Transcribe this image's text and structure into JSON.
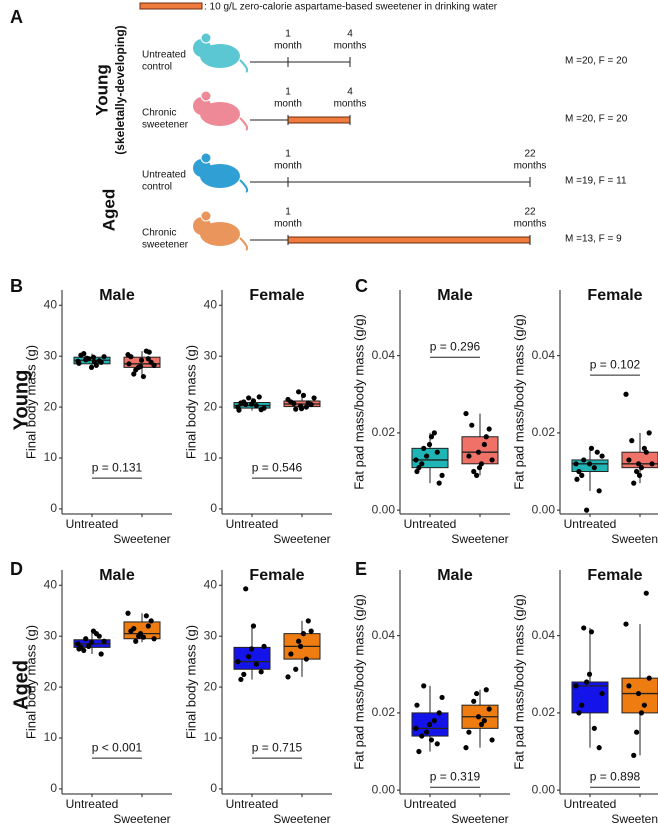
{
  "figure": {
    "panels": [
      "A",
      "B",
      "C",
      "D",
      "E"
    ],
    "rows": [
      "Young",
      "Aged"
    ]
  },
  "schematic": {
    "legend": ": 10 g/L zero-calorie aspartame-based sweetener in drinking water",
    "groups": [
      {
        "name": "Young",
        "subtitle": "(skeletally-developing)"
      },
      {
        "name": "Aged"
      }
    ],
    "rows": [
      {
        "label": [
          "Untreated",
          "control"
        ],
        "start": [
          "1",
          "month"
        ],
        "end": [
          "4",
          "months"
        ],
        "counts": "M =20, F = 20"
      },
      {
        "label": [
          "Chronic",
          "sweetener"
        ],
        "start": [
          "1",
          "month"
        ],
        "end": [
          "4",
          "months"
        ],
        "counts": "M =20, F = 20"
      },
      {
        "label": [
          "Untreated",
          "control"
        ],
        "start": [
          "1",
          "month"
        ],
        "end": [
          "22",
          "months"
        ],
        "counts": "M =19, F = 11"
      },
      {
        "label": [
          "Chronic",
          "sweetener"
        ],
        "start": [
          "1",
          "month"
        ],
        "end": [
          "22",
          "months"
        ],
        "counts": "M =13, F = 9"
      }
    ]
  },
  "chart_data": [
    {
      "type": "box",
      "title": "Male",
      "ylabel": "Final body mass (g)",
      "categories": [
        "Untreated",
        "Sweetener"
      ],
      "colors": [
        "#1fb5b5",
        "#f07167"
      ],
      "ylim": [
        -1,
        43
      ],
      "yticks": [
        0,
        10,
        20,
        30,
        40
      ],
      "annotation": "p = 0.131",
      "boxes": [
        {
          "whislo": 27.8,
          "q1": 28.5,
          "med": 29.2,
          "q3": 29.8,
          "whishi": 30.5
        },
        {
          "whislo": 26.0,
          "q1": 27.8,
          "med": 28.5,
          "q3": 29.8,
          "whishi": 31.0
        }
      ],
      "points": [
        [
          29.0,
          29.3,
          29.8,
          28.8,
          30.2,
          29.5,
          28.2,
          29.9,
          30.5,
          27.8,
          29.1,
          28.6,
          29.6,
          28.9
        ],
        [
          28.0,
          29.5,
          30.3,
          27.3,
          26.0,
          28.8,
          29.9,
          27.8,
          31.0,
          28.2,
          26.5,
          29.2,
          30.8,
          28.5
        ]
      ]
    },
    {
      "type": "box",
      "title": "Female",
      "ylabel": "Final body mass (g)",
      "categories": [
        "Untreated",
        "Sweetener"
      ],
      "colors": [
        "#1fb5b5",
        "#f07167"
      ],
      "ylim": [
        -1,
        43
      ],
      "yticks": [
        0,
        10,
        20,
        30,
        40
      ],
      "annotation": "p = 0.546",
      "boxes": [
        {
          "whislo": 19.3,
          "q1": 19.8,
          "med": 20.3,
          "q3": 20.9,
          "whishi": 21.8
        },
        {
          "whislo": 19.5,
          "q1": 20.1,
          "med": 20.6,
          "q3": 21.2,
          "whishi": 22.3
        }
      ],
      "points": [
        [
          20.0,
          20.5,
          21.2,
          19.5,
          20.8,
          21.8,
          20.3,
          19.8,
          21.0,
          20.6,
          22.0,
          19.4
        ],
        [
          20.2,
          20.8,
          21.5,
          19.6,
          22.3,
          20.5,
          21.0,
          23.0,
          20.0,
          21.8,
          20.7,
          19.7
        ]
      ]
    },
    {
      "type": "box",
      "title": "Male",
      "ylabel": "Fat pad mass/body mass (g/g)",
      "categories": [
        "Untreated",
        "Sweetener"
      ],
      "colors": [
        "#1fb5b5",
        "#f07167"
      ],
      "ylim": [
        -0.001,
        0.057
      ],
      "yticks": [
        {
          "value": 0,
          "label": "0.00"
        },
        {
          "value": 0.02,
          "label": "0.02"
        },
        {
          "value": 0.04,
          "label": "0.04"
        }
      ],
      "annotation": "p = 0.296",
      "boxes": [
        {
          "whislo": 0.007,
          "q1": 0.011,
          "med": 0.013,
          "q3": 0.016,
          "whishi": 0.02
        },
        {
          "whislo": 0.009,
          "q1": 0.012,
          "med": 0.015,
          "q3": 0.019,
          "whishi": 0.025
        }
      ],
      "points": [
        [
          0.013,
          0.016,
          0.019,
          0.007,
          0.011,
          0.014,
          0.02,
          0.009,
          0.012,
          0.017,
          0.015,
          0.01
        ],
        [
          0.015,
          0.019,
          0.025,
          0.01,
          0.012,
          0.021,
          0.014,
          0.009,
          0.017,
          0.013,
          0.022,
          0.011
        ]
      ]
    },
    {
      "type": "box",
      "title": "Female",
      "ylabel": "Fat pad mass/body mass (g/g)",
      "categories": [
        "Untreated",
        "Sweetener"
      ],
      "colors": [
        "#1fb5b5",
        "#f07167"
      ],
      "ylim": [
        -0.001,
        0.057
      ],
      "yticks": [
        {
          "value": 0,
          "label": "0.00"
        },
        {
          "value": 0.02,
          "label": "0.02"
        },
        {
          "value": 0.04,
          "label": "0.04"
        }
      ],
      "annotation": "p = 0.102",
      "boxes": [
        {
          "whislo": 0.005,
          "q1": 0.01,
          "med": 0.012,
          "q3": 0.013,
          "whishi": 0.016
        },
        {
          "whislo": 0.007,
          "q1": 0.011,
          "med": 0.012,
          "q3": 0.015,
          "whishi": 0.02
        }
      ],
      "points": [
        [
          0.012,
          0.013,
          0.016,
          0.005,
          0.01,
          0.0,
          0.011,
          0.014,
          0.009,
          0.012,
          0.015,
          0.008
        ],
        [
          0.012,
          0.015,
          0.03,
          0.007,
          0.011,
          0.02,
          0.013,
          0.01,
          0.016,
          0.012,
          0.018,
          0.009
        ]
      ]
    },
    {
      "type": "box",
      "title": "Male",
      "ylabel": "Final body mass (g)",
      "categories": [
        "Untreated",
        "Sweetener"
      ],
      "colors": [
        "#1414ea",
        "#ef7c10"
      ],
      "ylim": [
        -1,
        43
      ],
      "yticks": [
        0,
        10,
        20,
        30,
        40
      ],
      "annotation": "p < 0.001",
      "boxes": [
        {
          "whislo": 26.5,
          "q1": 27.8,
          "med": 28.5,
          "q3": 29.3,
          "whishi": 31.0
        },
        {
          "whislo": 28.8,
          "q1": 29.5,
          "med": 30.5,
          "q3": 32.8,
          "whishi": 34.5
        }
      ],
      "points": [
        [
          28.5,
          29.5,
          31.0,
          26.5,
          27.8,
          28.0,
          30.5,
          29.0,
          27.2,
          28.8,
          30.0,
          27.5
        ],
        [
          30.5,
          32.0,
          34.5,
          29.0,
          29.8,
          33.0,
          31.0,
          30.0,
          34.0,
          29.5,
          31.5
        ]
      ]
    },
    {
      "type": "box",
      "title": "Female",
      "ylabel": "Final body mass (g)",
      "categories": [
        "Untreated",
        "Sweetener"
      ],
      "colors": [
        "#1414ea",
        "#ef7c10"
      ],
      "ylim": [
        -1,
        43
      ],
      "yticks": [
        0,
        10,
        20,
        30,
        40
      ],
      "annotation": "p = 0.715",
      "boxes": [
        {
          "whislo": 21.5,
          "q1": 23.5,
          "med": 25.0,
          "q3": 27.8,
          "whishi": 32.0
        },
        {
          "whislo": 22.0,
          "q1": 25.5,
          "med": 28.0,
          "q3": 30.5,
          "whishi": 33.0
        }
      ],
      "points": [
        [
          25.0,
          39.3,
          32.0,
          23.0,
          21.5,
          26.0,
          24.5,
          28.0,
          22.5,
          27.5
        ],
        [
          28.0,
          33.0,
          22.0,
          23.5,
          30.5,
          31.0,
          26.5,
          29.0,
          25.5
        ]
      ]
    },
    {
      "type": "box",
      "title": "Male",
      "ylabel": "Fat pad mass/body mass (g/g)",
      "categories": [
        "Untreated",
        "Sweetener"
      ],
      "colors": [
        "#1414ea",
        "#ef7c10"
      ],
      "ylim": [
        -0.001,
        0.057
      ],
      "yticks": [
        {
          "value": 0,
          "label": "0.00"
        },
        {
          "value": 0.02,
          "label": "0.02"
        },
        {
          "value": 0.04,
          "label": "0.04"
        }
      ],
      "annotation": "p = 0.319",
      "boxes": [
        {
          "whislo": 0.01,
          "q1": 0.014,
          "med": 0.016,
          "q3": 0.02,
          "whishi": 0.027
        },
        {
          "whislo": 0.011,
          "q1": 0.016,
          "med": 0.019,
          "q3": 0.022,
          "whishi": 0.026
        }
      ],
      "points": [
        [
          0.016,
          0.027,
          0.013,
          0.02,
          0.01,
          0.015,
          0.018,
          0.024,
          0.014,
          0.017,
          0.012,
          0.022
        ],
        [
          0.019,
          0.026,
          0.011,
          0.023,
          0.017,
          0.021,
          0.015,
          0.025,
          0.018,
          0.013
        ]
      ]
    },
    {
      "type": "box",
      "title": "Female",
      "ylabel": "Fat pad mass/body mass (g/g)",
      "categories": [
        "Untreated",
        "Sweetener"
      ],
      "colors": [
        "#1414ea",
        "#ef7c10"
      ],
      "ylim": [
        -0.001,
        0.057
      ],
      "yticks": [
        {
          "value": 0,
          "label": "0.00"
        },
        {
          "value": 0.02,
          "label": "0.02"
        },
        {
          "value": 0.04,
          "label": "0.04"
        }
      ],
      "annotation": "p = 0.898",
      "boxes": [
        {
          "whislo": 0.011,
          "q1": 0.02,
          "med": 0.027,
          "q3": 0.028,
          "whishi": 0.042
        },
        {
          "whislo": 0.009,
          "q1": 0.02,
          "med": 0.025,
          "q3": 0.029,
          "whishi": 0.043
        }
      ],
      "points": [
        [
          0.027,
          0.042,
          0.041,
          0.011,
          0.02,
          0.028,
          0.016,
          0.025,
          0.022,
          0.03
        ],
        [
          0.025,
          0.051,
          0.043,
          0.009,
          0.02,
          0.029,
          0.027,
          0.015,
          0.022
        ]
      ]
    }
  ]
}
